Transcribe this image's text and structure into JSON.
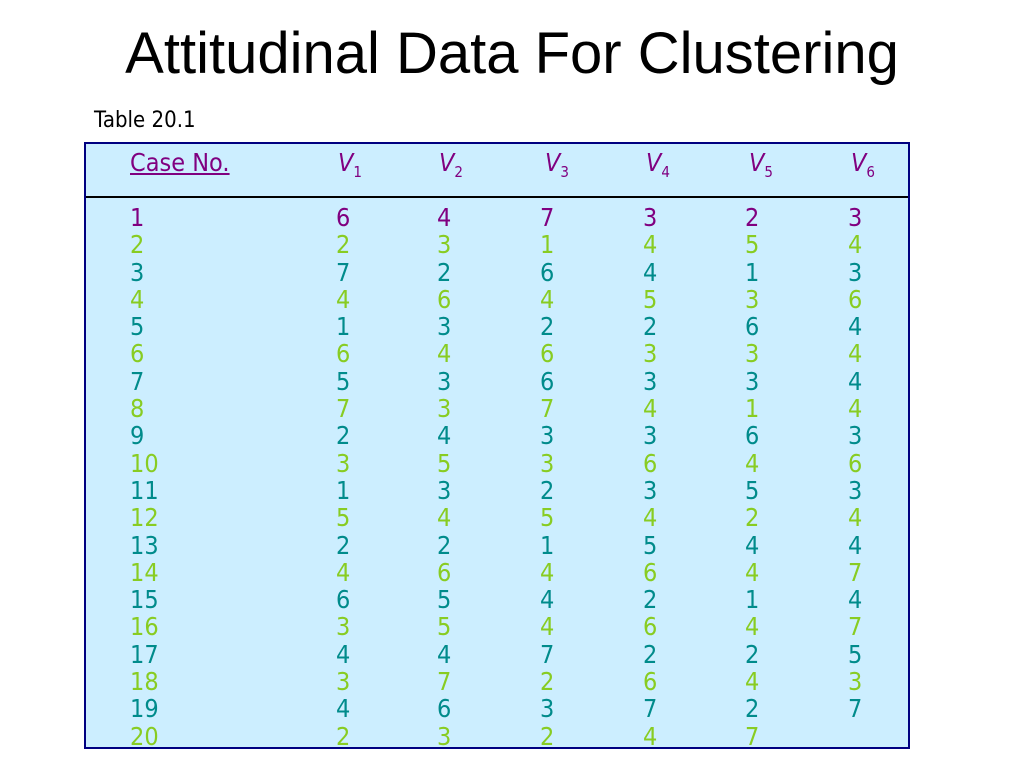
{
  "title": "Attitudinal Data For Clustering",
  "caption": "Table 20.1",
  "table": {
    "headers": [
      {
        "main": "Case No.",
        "sub": ""
      },
      {
        "main": "V",
        "sub": "1"
      },
      {
        "main": "V",
        "sub": "2"
      },
      {
        "main": "V",
        "sub": "3"
      },
      {
        "main": "V",
        "sub": "4"
      },
      {
        "main": "V",
        "sub": "5"
      },
      {
        "main": "V",
        "sub": "6"
      }
    ],
    "colors": {
      "header": "#800080",
      "row1": "#800080",
      "even": "#88cc22",
      "odd": "#008b8b",
      "background": "#cceeff",
      "border": "#000080"
    },
    "rows": [
      [
        "1",
        "6",
        "4",
        "7",
        "3",
        "2",
        "3"
      ],
      [
        "2",
        "2",
        "3",
        "1",
        "4",
        "5",
        "4"
      ],
      [
        "3",
        "7",
        "2",
        "6",
        "4",
        "1",
        "3"
      ],
      [
        "4",
        "4",
        "6",
        "4",
        "5",
        "3",
        "6"
      ],
      [
        "5",
        "1",
        "3",
        "2",
        "2",
        "6",
        "4"
      ],
      [
        "6",
        "6",
        "4",
        "6",
        "3",
        "3",
        "4"
      ],
      [
        "7",
        "5",
        "3",
        "6",
        "3",
        "3",
        "4"
      ],
      [
        "8",
        "7",
        "3",
        "7",
        "4",
        "1",
        "4"
      ],
      [
        "9",
        "2",
        "4",
        "3",
        "3",
        "6",
        "3"
      ],
      [
        "10",
        "3",
        "5",
        "3",
        "6",
        "4",
        "6"
      ],
      [
        "11",
        "1",
        "3",
        "2",
        "3",
        "5",
        "3"
      ],
      [
        "12",
        "5",
        "4",
        "5",
        "4",
        "2",
        "4"
      ],
      [
        "13",
        "2",
        "2",
        "1",
        "5",
        "4",
        "4"
      ],
      [
        "14",
        "4",
        "6",
        "4",
        "6",
        "4",
        "7"
      ],
      [
        "15",
        "6",
        "5",
        "4",
        "2",
        "1",
        "4"
      ],
      [
        "16",
        "3",
        "5",
        "4",
        "6",
        "4",
        "7"
      ],
      [
        "17",
        "4",
        "4",
        "7",
        "2",
        "2",
        "5"
      ],
      [
        "18",
        "3",
        "7",
        "2",
        "6",
        "4",
        "3"
      ],
      [
        "19",
        "4",
        "6",
        "3",
        "7",
        "2",
        "7"
      ],
      [
        "20",
        "2",
        "3",
        "2",
        "4",
        "7",
        ""
      ]
    ]
  }
}
